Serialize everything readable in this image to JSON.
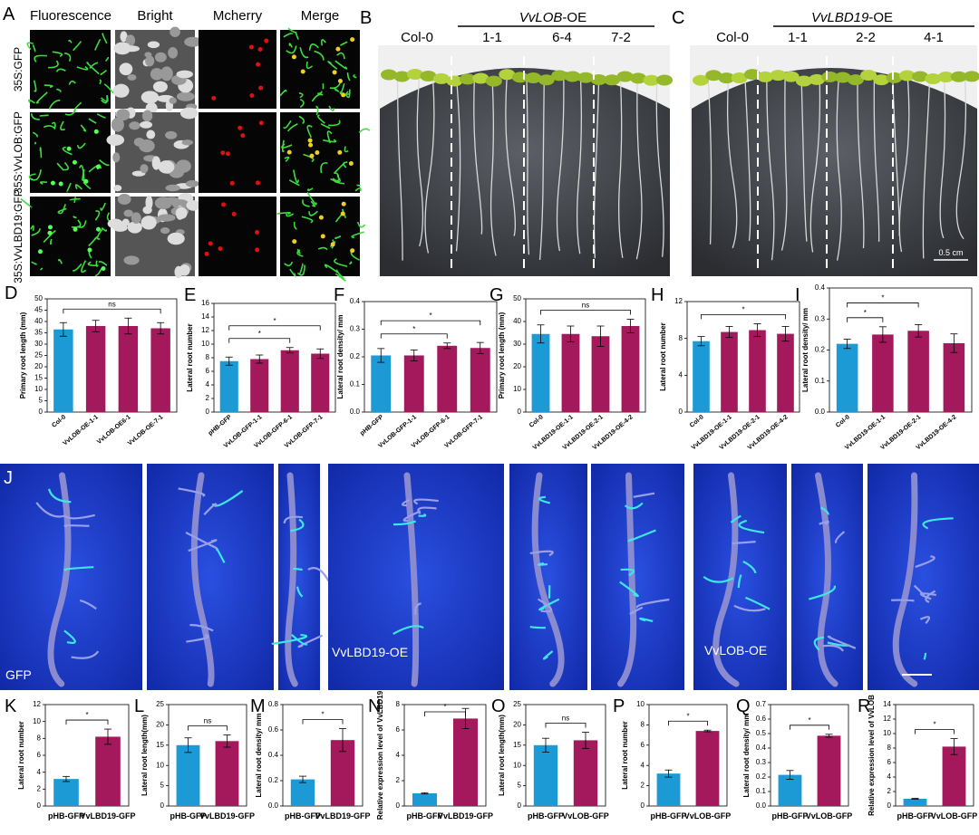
{
  "panels": {
    "A": {
      "letter": "A",
      "columns": [
        "Fluorescence",
        "Bright",
        "Mcherry",
        "Merge"
      ],
      "rows": [
        "35S:GFP",
        "35S:VvLOB:GFP",
        "35S:VvLBD19:GFP"
      ]
    },
    "B": {
      "letter": "B",
      "control": "Col-0",
      "group": {
        "gene": "VvLOB",
        "suffix": "-OE"
      },
      "lines": [
        "1-1",
        "6-4",
        "7-2"
      ]
    },
    "C": {
      "letter": "C",
      "control": "Col-0",
      "group": {
        "gene": "VvLBD19",
        "suffix": "-OE"
      },
      "lines": [
        "1-1",
        "2-2",
        "4-1"
      ],
      "scale_bar": "0.5 cm"
    },
    "J": {
      "letter": "J",
      "labels": [
        "GFP",
        "VvLBD19-OE",
        "VvLOB-OE"
      ]
    }
  },
  "chart_data": [
    {
      "type": "bar",
      "panel": "D",
      "ylabel": "Primary root length (mm)",
      "categories": [
        "Col-0",
        "VvLOB-OE-1-1",
        "VvLOB-OE6-1",
        "VvLOB-OE-7-1"
      ],
      "values": [
        36.5,
        38,
        38,
        37
      ],
      "errors": [
        3,
        2.5,
        3.5,
        2.5
      ],
      "colors": [
        "#1b9ad6",
        "#a3195b",
        "#a3195b",
        "#a3195b"
      ],
      "ylim": [
        0,
        50
      ],
      "yticks": [
        0,
        5,
        10,
        15,
        20,
        25,
        30,
        35,
        40,
        45,
        50
      ],
      "brackets": [
        {
          "label": "ns",
          "between": [
            "Col-0",
            "VvLOB-OE-7-1"
          ]
        }
      ]
    },
    {
      "type": "bar",
      "panel": "E",
      "ylabel": "Lateral root number",
      "categories": [
        "pHB-GFP",
        "VvLOB-GFP-1-1",
        "VvLOB-GFP-6-1",
        "VvLOB-GFP-7-1"
      ],
      "values": [
        7.5,
        7.8,
        9.1,
        8.6
      ],
      "errors": [
        0.6,
        0.6,
        0.4,
        0.7
      ],
      "colors": [
        "#1b9ad6",
        "#a3195b",
        "#a3195b",
        "#a3195b"
      ],
      "ylim": [
        0,
        16
      ],
      "yticks": [
        0,
        2,
        4,
        6,
        8,
        10,
        12,
        14,
        16
      ],
      "brackets": [
        {
          "label": "*",
          "between": [
            "pHB-GFP",
            "VvLOB-GFP-6-1"
          ]
        },
        {
          "label": "*",
          "between": [
            "pHB-GFP",
            "VvLOB-GFP-7-1"
          ]
        }
      ]
    },
    {
      "type": "bar",
      "panel": "F",
      "ylabel": "Lateral root density/ mm",
      "categories": [
        "pHB-GFP",
        "VvLOB-GFP-1-1",
        "VvLOB-GFP-6-1",
        "VvLOB-GFP-7-1"
      ],
      "values": [
        0.205,
        0.205,
        0.24,
        0.232
      ],
      "errors": [
        0.025,
        0.02,
        0.01,
        0.02
      ],
      "colors": [
        "#1b9ad6",
        "#a3195b",
        "#a3195b",
        "#a3195b"
      ],
      "ylim": [
        0,
        0.4
      ],
      "yticks": [
        {
          "value": 0,
          "label": "0.0"
        },
        0.1,
        0.2,
        0.3,
        0.4
      ],
      "brackets": [
        {
          "label": "*",
          "between": [
            "pHB-GFP",
            "VvLOB-GFP-6-1"
          ]
        },
        {
          "label": "*",
          "between": [
            "pHB-GFP",
            "VvLOB-GFP-7-1"
          ]
        }
      ]
    },
    {
      "type": "bar",
      "panel": "G",
      "ylabel": "Primary root length (mm)",
      "categories": [
        "Col-0",
        "VvLBD19-OE-1-1",
        "VvLBD19-OE-2-1",
        "VvLBD19-OE-4-2"
      ],
      "values": [
        34.5,
        34.5,
        33.5,
        38
      ],
      "errors": [
        4,
        3.5,
        4.5,
        3
      ],
      "colors": [
        "#1b9ad6",
        "#a3195b",
        "#a3195b",
        "#a3195b"
      ],
      "ylim": [
        0,
        50
      ],
      "yticks": [
        0,
        10,
        20,
        30,
        40,
        50
      ],
      "brackets": [
        {
          "label": "ns",
          "between": [
            "Col-0",
            "VvLBD19-OE-4-2"
          ]
        }
      ]
    },
    {
      "type": "bar",
      "panel": "H",
      "ylabel": "Lateral root number",
      "categories": [
        "Col-0",
        "VvLBD19-OE-1-1",
        "VvLBD19-OE-2-1",
        "VvLBD19-OE-4-2"
      ],
      "values": [
        7.7,
        8.7,
        8.9,
        8.5
      ],
      "errors": [
        0.5,
        0.6,
        0.7,
        0.8
      ],
      "colors": [
        "#1b9ad6",
        "#a3195b",
        "#a3195b",
        "#a3195b"
      ],
      "ylim": [
        0,
        12
      ],
      "yticks": [
        0,
        4,
        8,
        12
      ],
      "brackets": [
        {
          "label": "*",
          "between": [
            "Col-0",
            "VvLBD19-OE-4-2"
          ]
        }
      ]
    },
    {
      "type": "bar",
      "panel": "I",
      "ylabel": "Lateral root density/ mm",
      "categories": [
        "Col-0",
        "VvLBD19-OE-1-1",
        "VvLBD19-OE-2-1",
        "VvLBD19-OE-4-2"
      ],
      "values": [
        0.22,
        0.25,
        0.262,
        0.222
      ],
      "errors": [
        0.015,
        0.025,
        0.02,
        0.03
      ],
      "colors": [
        "#1b9ad6",
        "#a3195b",
        "#a3195b",
        "#a3195b"
      ],
      "ylim": [
        0,
        0.4
      ],
      "yticks": [
        {
          "value": 0,
          "label": "0.0"
        },
        0.1,
        0.2,
        0.3,
        0.4
      ],
      "brackets": [
        {
          "label": "*",
          "between": [
            "Col-0",
            "VvLBD19-OE-1-1"
          ]
        },
        {
          "label": "*",
          "between": [
            "Col-0",
            "VvLBD19-OE-2-1"
          ]
        }
      ]
    },
    {
      "type": "bar",
      "panel": "K",
      "ylabel": "Lateral root number",
      "categories": [
        "pHB-GFP",
        "VvLBD19-GFP"
      ],
      "values": [
        3.2,
        8.2
      ],
      "errors": [
        0.3,
        0.9
      ],
      "colors": [
        "#1b9ad6",
        "#a3195b"
      ],
      "ylim": [
        0,
        12
      ],
      "yticks": [
        0,
        2,
        4,
        6,
        8,
        10,
        12
      ],
      "brackets": [
        {
          "label": "*",
          "between": [
            "pHB-GFP",
            "VvLBD19-GFP"
          ]
        }
      ]
    },
    {
      "type": "bar",
      "panel": "L",
      "ylabel": "Lateral root length(mm)",
      "categories": [
        "pHB-GFP",
        "VvLBD19-GFP"
      ],
      "values": [
        15,
        16
      ],
      "errors": [
        1.8,
        1.5
      ],
      "colors": [
        "#1b9ad6",
        "#a3195b"
      ],
      "ylim": [
        0,
        25
      ],
      "yticks": [
        0,
        5,
        10,
        15,
        20,
        25
      ],
      "brackets": [
        {
          "label": "ns",
          "between": [
            "pHB-GFP",
            "VvLBD19-GFP"
          ]
        }
      ]
    },
    {
      "type": "bar",
      "panel": "M",
      "ylabel": "Lateral root density/ mm",
      "categories": [
        "pHB-GFP",
        "VvLBD19-GFP"
      ],
      "values": [
        0.21,
        0.52
      ],
      "errors": [
        0.025,
        0.09
      ],
      "colors": [
        "#1b9ad6",
        "#a3195b"
      ],
      "ylim": [
        0,
        0.8
      ],
      "yticks": [
        {
          "value": 0,
          "label": "0.0"
        },
        0.2,
        0.4,
        0.6,
        0.8
      ],
      "brackets": [
        {
          "label": "*",
          "between": [
            "pHB-GFP",
            "VvLBD19-GFP"
          ]
        }
      ]
    },
    {
      "type": "bar",
      "panel": "N",
      "ylabel": "Relative expression level of VvLBD19",
      "categories": [
        "pHB-GFP",
        "VvLBD19-GFP"
      ],
      "values": [
        1,
        6.9
      ],
      "errors": [
        0.05,
        0.8
      ],
      "colors": [
        "#1b9ad6",
        "#a3195b"
      ],
      "ylim": [
        0,
        8
      ],
      "yticks": [
        0,
        2,
        4,
        6,
        8
      ],
      "brackets": [
        {
          "label": "*",
          "between": [
            "pHB-GFP",
            "VvLBD19-GFP"
          ]
        }
      ]
    },
    {
      "type": "bar",
      "panel": "O",
      "ylabel": "Lateral root length(mm)",
      "categories": [
        "pHB-GFP",
        "VvLOB-GFP"
      ],
      "values": [
        15,
        16.2
      ],
      "errors": [
        1.7,
        2
      ],
      "colors": [
        "#1b9ad6",
        "#a3195b"
      ],
      "ylim": [
        0,
        25
      ],
      "yticks": [
        0,
        5,
        10,
        15,
        20,
        25
      ],
      "brackets": [
        {
          "label": "ns",
          "between": [
            "pHB-GFP",
            "VvLOB-GFP"
          ]
        }
      ]
    },
    {
      "type": "bar",
      "panel": "P",
      "ylabel": "Lateral root number",
      "categories": [
        "pHB-GFP",
        "VvLOB-GFP"
      ],
      "values": [
        3.2,
        7.4
      ],
      "errors": [
        0.35,
        0.08
      ],
      "colors": [
        "#1b9ad6",
        "#a3195b"
      ],
      "ylim": [
        0,
        10
      ],
      "yticks": [
        0,
        2,
        4,
        6,
        8,
        10
      ],
      "brackets": [
        {
          "label": "*",
          "between": [
            "pHB-GFP",
            "VvLOB-GFP"
          ]
        }
      ]
    },
    {
      "type": "bar",
      "panel": "Q",
      "ylabel": "Lateral root density/ mm",
      "categories": [
        "pHB-GFP",
        "VvLOB-GFP"
      ],
      "values": [
        0.215,
        0.485
      ],
      "errors": [
        0.03,
        0.01
      ],
      "colors": [
        "#1b9ad6",
        "#a3195b"
      ],
      "ylim": [
        0,
        0.7
      ],
      "yticks": [
        {
          "value": 0,
          "label": "0.0"
        },
        0.1,
        0.2,
        0.3,
        0.4,
        0.5,
        0.6,
        0.7
      ],
      "brackets": [
        {
          "label": "*",
          "between": [
            "pHB-GFP",
            "VvLOB-GFP"
          ]
        }
      ]
    },
    {
      "type": "bar",
      "panel": "R",
      "ylabel": "Relative expression level of VvLOB",
      "categories": [
        "pHB-GFP",
        "VvLOB-GFP"
      ],
      "values": [
        1,
        8.2
      ],
      "errors": [
        0.05,
        1.1
      ],
      "colors": [
        "#1b9ad6",
        "#a3195b"
      ],
      "ylim": [
        0,
        14
      ],
      "yticks": [
        0,
        2,
        4,
        6,
        8,
        10,
        12,
        14
      ],
      "brackets": [
        {
          "label": "*",
          "between": [
            "pHB-GFP",
            "VvLOB-GFP"
          ]
        }
      ]
    }
  ]
}
